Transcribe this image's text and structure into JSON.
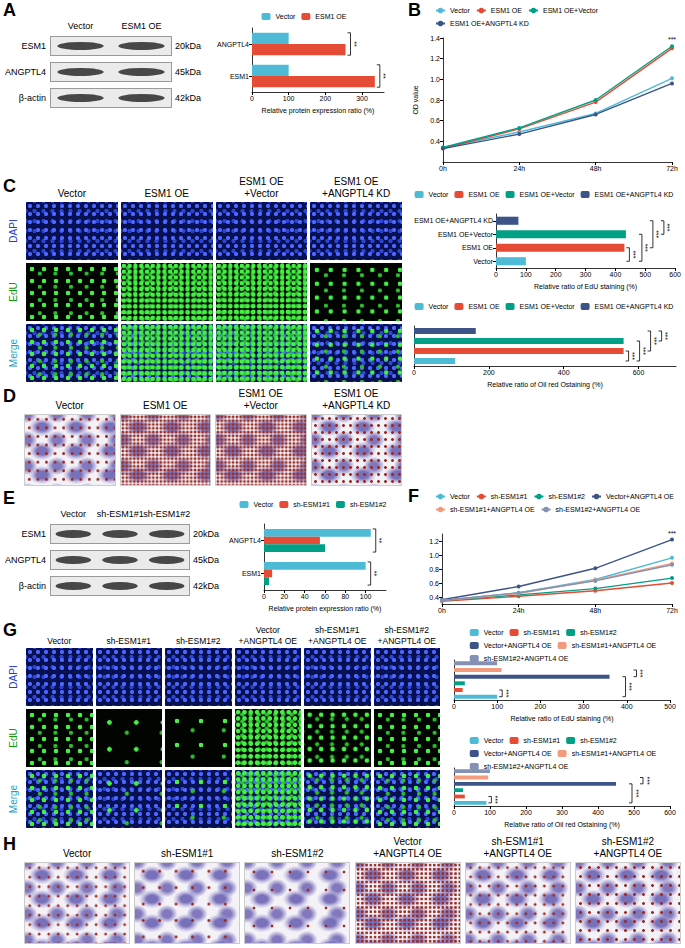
{
  "figure": {
    "blots": [
      {
        "letter": "A",
        "lanes": [
          "Vector",
          "ESM1 OE"
        ],
        "rows": [
          {
            "protein": "ESM1",
            "size": "20kDa"
          },
          {
            "protein": "ANGPTL4",
            "size": "45kDa"
          },
          {
            "protein": "β-actin",
            "size": "42kDa"
          }
        ]
      },
      {
        "letter": "E",
        "lanes": [
          "Vector",
          "sh-ESM1#1",
          "sh-ESM1#2"
        ],
        "rows": [
          {
            "protein": "ESM1",
            "size": "20kDa"
          },
          {
            "protein": "ANGPTL4",
            "size": "45kDa"
          },
          {
            "protein": "β-actin",
            "size": "42kDa"
          }
        ]
      }
    ],
    "micrographs": [
      {
        "letter": "C",
        "columns": [
          "Vector",
          "ESM1 OE",
          "ESM1 OE+Vector",
          "ESM1 OE+ANGPTL4 KD"
        ],
        "rows": [
          "DAPI",
          "EdU",
          "Merge"
        ]
      },
      {
        "letter": "G",
        "columns": [
          "Vector",
          "sh-ESM1#1",
          "sh-ESM1#2",
          "Vector+ANGPTL4 OE",
          "sh-ESM1#1+ANGPTL4 OE",
          "sh-ESM1#2+ANGPTL4 OE"
        ],
        "rows": [
          "DAPI",
          "EdU",
          "Merge"
        ]
      }
    ],
    "stainings": [
      {
        "letter": "D",
        "columns": [
          "Vector",
          "ESM1 OE",
          "ESM1 OE+Vector",
          "ESM1 OE+ANGPTL4 KD"
        ]
      },
      {
        "letter": "H",
        "columns": [
          "Vector",
          "sh-ESM1#1",
          "sh-ESM1#2",
          "Vector+ANGPTL4 OE",
          "sh-ESM1#1+ANGPTL4 OE",
          "sh-ESM1#2+ANGPTL4 OE"
        ]
      }
    ]
  },
  "chart_data": [
    {
      "type": "bar",
      "orientation": "horizontal",
      "categories": [
        "ESM1",
        "ANGPTL4"
      ],
      "series": [
        {
          "name": "Vector",
          "color": "#4DBBD5",
          "values": [
            100,
            100
          ]
        },
        {
          "name": "ESM1 OE",
          "color": "#E64B35",
          "values": [
            335,
            255
          ]
        }
      ],
      "x_label": "Relative protein expression ratio (%)",
      "xlim": [
        0,
        360
      ],
      "xticks": [
        0,
        100,
        200,
        300
      ],
      "legend": "top",
      "grid": false,
      "annotations": [
        {
          "category": "ESM1",
          "text": "**"
        },
        {
          "category": "ANGPTL4",
          "text": "**"
        }
      ]
    },
    {
      "type": "line",
      "letter": "B",
      "categories": [
        "0h",
        "24h",
        "48h",
        "72h"
      ],
      "series": [
        {
          "name": "Vector",
          "color": "#4DBBD5",
          "values": [
            0.34,
            0.49,
            0.67,
            1.01
          ]
        },
        {
          "name": "ESM1 OE",
          "color": "#E64B35",
          "values": [
            0.33,
            0.52,
            0.78,
            1.3
          ]
        },
        {
          "name": "ESM1 OE+Vector",
          "color": "#00A087",
          "values": [
            0.34,
            0.53,
            0.8,
            1.32
          ]
        },
        {
          "name": "ESM1 OE+ANGPTL4 KD",
          "color": "#3C5488",
          "values": [
            0.33,
            0.47,
            0.66,
            0.96
          ]
        }
      ],
      "y_label": "OD value",
      "ylim": [
        0.2,
        1.4
      ],
      "yticks": [
        0.4,
        0.6,
        0.8,
        {
          "value": 1,
          "label": "1.0"
        },
        1.2,
        1.4
      ],
      "marker": "circle",
      "legend": "top",
      "grid": false,
      "annotations": [
        {
          "category": "72h",
          "text": "***"
        }
      ]
    },
    {
      "type": "bar",
      "orientation": "horizontal",
      "categories": [
        "Vector",
        "ESM1 OE",
        "ESM1 OE+Vector",
        "ESM1 OE+ANGPTL4 KD"
      ],
      "values": [
        100,
        430,
        435,
        75
      ],
      "colors": [
        "#4DBBD5",
        "#E64B35",
        "#00A087",
        "#3C5488"
      ],
      "x_label": "Relative ratio of EdU staining (%)",
      "xlim": [
        0,
        600
      ],
      "xticks": [
        0,
        100,
        200,
        300,
        400,
        500,
        600
      ],
      "legend": "top",
      "grid": false,
      "annotations": [
        {
          "between": [
            "Vector",
            "ESM1 OE"
          ],
          "text": "***"
        },
        {
          "between": [
            "Vector",
            "ESM1 OE+Vector"
          ],
          "text": "***"
        },
        {
          "between": [
            "ESM1 OE",
            "ESM1 OE+ANGPTL4 KD"
          ],
          "text": "***"
        },
        {
          "between": [
            "ESM1 OE+Vector",
            "ESM1 OE+ANGPTL4 KD"
          ],
          "text": "***"
        }
      ]
    },
    {
      "type": "bar",
      "orientation": "horizontal",
      "categories": [
        "Vector",
        "ESM1 OE",
        "ESM1 OE+Vector",
        "ESM1 OE+ANGPTL4 KD"
      ],
      "values": [
        110,
        560,
        560,
        165
      ],
      "colors": [
        "#4DBBD5",
        "#E64B35",
        "#00A087",
        "#3C5488"
      ],
      "x_label": "Relative ratio of Oil red Ostaining (%)",
      "xlim": [
        0,
        700
      ],
      "xticks": [
        0,
        200,
        400,
        600
      ],
      "legend": "top",
      "grid": false,
      "tick_labels": "x",
      "annotations": [
        {
          "between": [
            "Vector",
            "ESM1 OE"
          ],
          "text": "***"
        },
        {
          "between": [
            "Vector",
            "ESM1 OE+Vector"
          ],
          "text": "***"
        },
        {
          "between": [
            "ESM1 OE",
            "ESM1 OE+ANGPTL4 KD"
          ],
          "text": "***"
        },
        {
          "between": [
            "ESM1 OE+Vector",
            "ESM1 OE+ANGPTL4 KD"
          ],
          "text": "***"
        }
      ]
    },
    {
      "type": "bar",
      "orientation": "horizontal",
      "categories": [
        "ESM1",
        "ANGPTL4"
      ],
      "series": [
        {
          "name": "Vector",
          "color": "#4DBBD5",
          "values": [
            100,
            105
          ]
        },
        {
          "name": "sh-ESM1#1",
          "color": "#E64B35",
          "values": [
            8,
            55
          ]
        },
        {
          "name": "sh-ESM1#2",
          "color": "#00A087",
          "values": [
            5,
            60
          ]
        }
      ],
      "x_label": "Relative protein expression ratio (%)",
      "xlim": [
        0,
        120
      ],
      "xticks": [
        0,
        20,
        40,
        60,
        80,
        100
      ],
      "legend": "top",
      "grid": false,
      "annotations": [
        {
          "category": "ESM1",
          "text": "**"
        },
        {
          "category": "ANGPTL4",
          "text": "**"
        }
      ]
    },
    {
      "type": "line",
      "letter": "F",
      "categories": [
        "0h",
        "24h",
        "48h",
        "72h"
      ],
      "series": [
        {
          "name": "Vector",
          "color": "#4DBBD5",
          "values": [
            0.35,
            0.46,
            0.65,
            0.96
          ]
        },
        {
          "name": "sh-ESM1#1",
          "color": "#E64B35",
          "values": [
            0.34,
            0.41,
            0.49,
            0.6
          ]
        },
        {
          "name": "sh-ESM1#2",
          "color": "#00A087",
          "values": [
            0.35,
            0.43,
            0.52,
            0.67
          ]
        },
        {
          "name": "Vector+ANGPTL4 OE",
          "color": "#3C5488",
          "values": [
            0.36,
            0.55,
            0.81,
            1.22
          ]
        },
        {
          "name": "sh-ESM1#1+ANGPTL4 OE",
          "color": "#F39B7F",
          "values": [
            0.35,
            0.45,
            0.64,
            0.88
          ]
        },
        {
          "name": "sh-ESM1#2+ANGPTL4 OE",
          "color": "#8491B4",
          "values": [
            0.35,
            0.46,
            0.63,
            0.86
          ]
        }
      ],
      "ylim": [
        0.3,
        1.3
      ],
      "yticks": [
        0.4,
        0.6,
        0.8,
        {
          "value": 1,
          "label": "1.0"
        },
        1.2
      ],
      "marker": "circle",
      "legend": "top",
      "grid": false,
      "annotations": [
        {
          "category": "72h",
          "text": "***"
        }
      ]
    },
    {
      "type": "bar",
      "orientation": "horizontal",
      "categories": [
        "Vector",
        "sh-ESM1#1",
        "sh-ESM1#2",
        "Vector+ANGPTL4 OE",
        "sh-ESM1#1+ANGPTL4 OE",
        "sh-ESM1#2+ANGPTL4 OE"
      ],
      "values": [
        100,
        20,
        25,
        360,
        110,
        100
      ],
      "colors": [
        "#4DBBD5",
        "#E64B35",
        "#00A087",
        "#3C5488",
        "#F39B7F",
        "#8491B4"
      ],
      "x_label": "Relative ratio of EdU staining (%)",
      "xlim": [
        0,
        500
      ],
      "xticks": [
        0,
        100,
        200,
        300,
        400,
        500
      ],
      "legend": "top",
      "grid": false,
      "tick_labels": "x",
      "annotations": [
        {
          "between": [
            "Vector",
            "sh-ESM1#1"
          ],
          "text": "***"
        },
        {
          "between": [
            "Vector",
            "Vector+ANGPTL4 OE"
          ],
          "text": "***"
        },
        {
          "between": [
            "Vector+ANGPTL4 OE",
            "sh-ESM1#1+ANGPTL4 OE"
          ],
          "text": "***"
        }
      ]
    },
    {
      "type": "bar",
      "orientation": "horizontal",
      "categories": [
        "Vector",
        "sh-ESM1#1",
        "sh-ESM1#2",
        "Vector+ANGPTL4 OE",
        "sh-ESM1#1+ANGPTL4 OE",
        "sh-ESM1#2+ANGPTL4 OE"
      ],
      "values": [
        90,
        30,
        25,
        450,
        95,
        100
      ],
      "colors": [
        "#4DBBD5",
        "#E64B35",
        "#00A087",
        "#3C5488",
        "#F39B7F",
        "#8491B4"
      ],
      "x_label": "Relative ratio of Oil red Ostaining (%)",
      "xlim": [
        0,
        600
      ],
      "xticks": [
        0,
        100,
        200,
        300,
        400,
        500,
        600
      ],
      "legend": "top",
      "grid": false,
      "tick_labels": "x",
      "annotations": [
        {
          "between": [
            "Vector",
            "sh-ESM1#1"
          ],
          "text": "***"
        },
        {
          "between": [
            "Vector",
            "Vector+ANGPTL4 OE"
          ],
          "text": "***"
        },
        {
          "between": [
            "Vector+ANGPTL4 OE",
            "sh-ESM1#1+ANGPTL4 OE"
          ],
          "text": "***"
        }
      ]
    }
  ]
}
